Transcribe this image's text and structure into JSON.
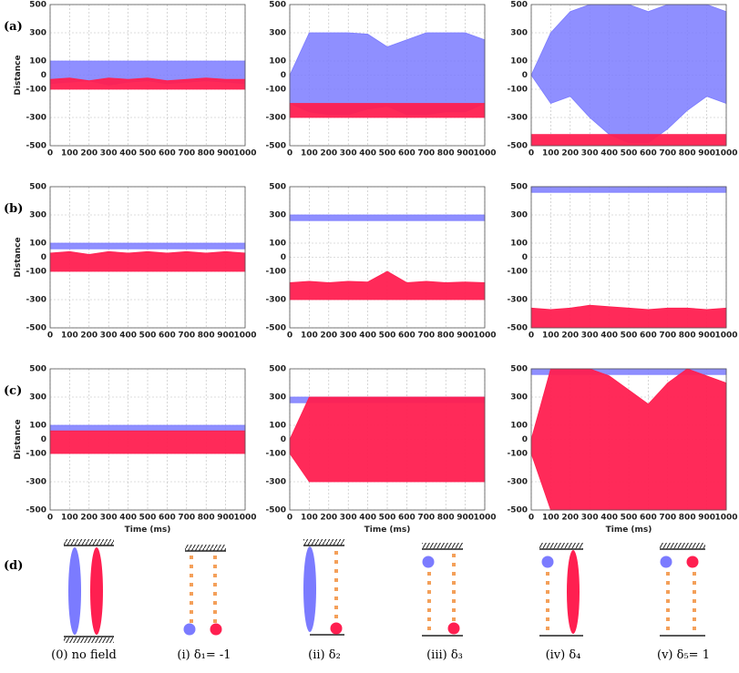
{
  "row_labels": [
    "(a)",
    "(b)",
    "(c)"
  ],
  "chart_data": [
    {
      "type": "band",
      "ylabel": "Distance",
      "x": [
        0,
        100,
        200,
        300,
        400,
        500,
        600,
        700,
        800,
        900,
        1000
      ],
      "xlim": [
        0,
        1000
      ],
      "xticks": [
        0,
        100,
        200,
        300,
        400,
        500,
        600,
        700,
        800,
        900,
        1000
      ],
      "ylim": [
        -500,
        500
      ],
      "yticks": [
        -500,
        -300,
        -100,
        0,
        100,
        300,
        500
      ],
      "grid": true,
      "series": [
        {
          "color": "#7b7bff",
          "low": [
            -60,
            -50,
            -40,
            -70,
            -50,
            -40,
            -60,
            -50,
            -40,
            -50,
            -60
          ],
          "high": [
            100,
            100,
            100,
            100,
            100,
            100,
            100,
            100,
            100,
            100,
            100
          ]
        },
        {
          "color": "#ff1f50",
          "low": [
            -100,
            -100,
            -100,
            -100,
            -100,
            -100,
            -100,
            -100,
            -100,
            -100,
            -100
          ],
          "high": [
            -30,
            -20,
            -40,
            -20,
            -30,
            -20,
            -40,
            -30,
            -20,
            -30,
            -30
          ]
        }
      ]
    },
    {
      "type": "band",
      "x": [
        0,
        100,
        200,
        300,
        400,
        500,
        600,
        700,
        800,
        900,
        1000
      ],
      "xlim": [
        0,
        1000
      ],
      "xticks": [
        0,
        100,
        200,
        300,
        400,
        500,
        600,
        700,
        800,
        900,
        1000
      ],
      "ylim": [
        -500,
        500
      ],
      "yticks": [
        -500,
        -300,
        -100,
        0,
        100,
        300,
        500
      ],
      "grid": true,
      "series": [
        {
          "color": "#7b7bff",
          "low": [
            -200,
            -260,
            -280,
            -280,
            -240,
            -220,
            -280,
            -280,
            -260,
            -260,
            -200
          ],
          "high": [
            0,
            300,
            300,
            300,
            290,
            200,
            250,
            300,
            300,
            300,
            250
          ]
        },
        {
          "color": "#ff1f50",
          "low": [
            -300,
            -300,
            -300,
            -300,
            -300,
            -300,
            -300,
            -300,
            -300,
            -300,
            -300
          ],
          "high": [
            -200,
            -200,
            -200,
            -200,
            -200,
            -200,
            -200,
            -200,
            -200,
            -200,
            -200
          ]
        }
      ]
    },
    {
      "type": "band",
      "x": [
        0,
        100,
        200,
        300,
        400,
        500,
        600,
        700,
        800,
        900,
        1000
      ],
      "xlim": [
        0,
        1000
      ],
      "xticks": [
        0,
        100,
        200,
        300,
        400,
        500,
        600,
        700,
        800,
        900,
        1000
      ],
      "ylim": [
        -500,
        500
      ],
      "yticks": [
        -500,
        -300,
        -100,
        0,
        100,
        300,
        500
      ],
      "grid": true,
      "series": [
        {
          "color": "#7b7bff",
          "low": [
            0,
            -200,
            -150,
            -300,
            -420,
            -480,
            -480,
            -380,
            -250,
            -150,
            -200
          ],
          "high": [
            0,
            300,
            450,
            500,
            500,
            500,
            450,
            500,
            500,
            500,
            450
          ]
        },
        {
          "color": "#ff1f50",
          "low": [
            -500,
            -500,
            -500,
            -500,
            -500,
            -500,
            -500,
            -500,
            -500,
            -500,
            -500
          ],
          "high": [
            -420,
            -420,
            -420,
            -420,
            -420,
            -420,
            -420,
            -420,
            -420,
            -420,
            -420
          ]
        }
      ]
    },
    {
      "type": "band",
      "ylabel": "Distance",
      "x": [
        0,
        100,
        200,
        300,
        400,
        500,
        600,
        700,
        800,
        900,
        1000
      ],
      "xlim": [
        0,
        1000
      ],
      "xticks": [
        0,
        100,
        200,
        300,
        400,
        500,
        600,
        700,
        800,
        900,
        1000
      ],
      "ylim": [
        -500,
        500
      ],
      "yticks": [
        -500,
        -300,
        -100,
        0,
        100,
        300,
        500
      ],
      "grid": true,
      "series": [
        {
          "color": "#7b7bff",
          "low": [
            60,
            60,
            60,
            60,
            60,
            60,
            60,
            60,
            60,
            60,
            60
          ],
          "high": [
            100,
            100,
            100,
            100,
            100,
            100,
            100,
            100,
            100,
            100,
            100
          ]
        },
        {
          "color": "#ff1f50",
          "low": [
            -100,
            -100,
            -100,
            -100,
            -100,
            -100,
            -100,
            -100,
            -100,
            -100,
            -100
          ],
          "high": [
            30,
            40,
            20,
            40,
            30,
            40,
            30,
            40,
            30,
            40,
            30
          ]
        }
      ]
    },
    {
      "type": "band",
      "x": [
        0,
        100,
        200,
        300,
        400,
        500,
        600,
        700,
        800,
        900,
        1000
      ],
      "xlim": [
        0,
        1000
      ],
      "xticks": [
        0,
        100,
        200,
        300,
        400,
        500,
        600,
        700,
        800,
        900,
        1000
      ],
      "ylim": [
        -500,
        500
      ],
      "yticks": [
        -500,
        -300,
        -100,
        0,
        100,
        300,
        500
      ],
      "grid": true,
      "series": [
        {
          "color": "#7b7bff",
          "low": [
            260,
            260,
            260,
            260,
            260,
            260,
            260,
            260,
            260,
            260,
            260
          ],
          "high": [
            300,
            300,
            300,
            300,
            300,
            300,
            300,
            300,
            300,
            300,
            300
          ]
        },
        {
          "color": "#ff1f50",
          "low": [
            -300,
            -300,
            -300,
            -300,
            -300,
            -300,
            -300,
            -300,
            -300,
            -300,
            -300
          ],
          "high": [
            -180,
            -170,
            -180,
            -170,
            -175,
            -100,
            -180,
            -170,
            -180,
            -175,
            -180
          ]
        }
      ]
    },
    {
      "type": "band",
      "x": [
        0,
        100,
        200,
        300,
        400,
        500,
        600,
        700,
        800,
        900,
        1000
      ],
      "xlim": [
        0,
        1000
      ],
      "xticks": [
        0,
        100,
        200,
        300,
        400,
        500,
        600,
        700,
        800,
        900,
        1000
      ],
      "ylim": [
        -500,
        500
      ],
      "yticks": [
        -500,
        -300,
        -100,
        0,
        100,
        300,
        500
      ],
      "grid": true,
      "series": [
        {
          "color": "#7b7bff",
          "low": [
            460,
            460,
            460,
            460,
            460,
            460,
            460,
            460,
            460,
            460,
            460
          ],
          "high": [
            500,
            500,
            500,
            500,
            500,
            500,
            500,
            500,
            500,
            500,
            500
          ]
        },
        {
          "color": "#ff1f50",
          "low": [
            -500,
            -500,
            -500,
            -500,
            -500,
            -500,
            -500,
            -500,
            -500,
            -500,
            -500
          ],
          "high": [
            -360,
            -370,
            -360,
            -340,
            -350,
            -360,
            -370,
            -360,
            -360,
            -370,
            -360
          ]
        }
      ]
    },
    {
      "type": "band",
      "ylabel": "Distance",
      "xlabel": "Time (ms)",
      "x": [
        0,
        100,
        200,
        300,
        400,
        500,
        600,
        700,
        800,
        900,
        1000
      ],
      "xlim": [
        0,
        1000
      ],
      "xticks": [
        0,
        100,
        200,
        300,
        400,
        500,
        600,
        700,
        800,
        900,
        1000
      ],
      "ylim": [
        -500,
        500
      ],
      "yticks": [
        -500,
        -300,
        -100,
        0,
        100,
        300,
        500
      ],
      "grid": true,
      "series": [
        {
          "color": "#7b7bff",
          "low": [
            60,
            60,
            60,
            60,
            60,
            60,
            60,
            60,
            60,
            60,
            60
          ],
          "high": [
            100,
            100,
            100,
            100,
            100,
            100,
            100,
            100,
            100,
            100,
            100
          ]
        },
        {
          "color": "#ff1f50",
          "low": [
            -100,
            -100,
            -100,
            -100,
            -100,
            -100,
            -100,
            -100,
            -100,
            -100,
            -100
          ],
          "high": [
            60,
            60,
            60,
            60,
            60,
            60,
            60,
            60,
            60,
            60,
            60
          ]
        }
      ]
    },
    {
      "type": "band",
      "xlabel": "Time (ms)",
      "x": [
        0,
        100,
        200,
        300,
        400,
        500,
        600,
        700,
        800,
        900,
        1000
      ],
      "xlim": [
        0,
        1000
      ],
      "xticks": [
        0,
        100,
        200,
        300,
        400,
        500,
        600,
        700,
        800,
        900,
        1000
      ],
      "ylim": [
        -500,
        500
      ],
      "yticks": [
        -500,
        -300,
        -100,
        0,
        100,
        300,
        500
      ],
      "grid": true,
      "series": [
        {
          "color": "#7b7bff",
          "low": [
            260,
            260,
            260,
            260,
            260,
            260,
            260,
            260,
            260,
            260,
            260
          ],
          "high": [
            300,
            300,
            300,
            300,
            300,
            300,
            300,
            300,
            300,
            300,
            300
          ]
        },
        {
          "color": "#ff1f50",
          "low": [
            -100,
            -300,
            -300,
            -300,
            -300,
            -300,
            -300,
            -300,
            -300,
            -300,
            -300
          ],
          "high": [
            0,
            300,
            300,
            300,
            300,
            300,
            300,
            300,
            300,
            300,
            300
          ]
        }
      ]
    },
    {
      "type": "band",
      "xlabel": "Time (ms)",
      "x": [
        0,
        100,
        200,
        300,
        400,
        500,
        600,
        700,
        800,
        900,
        1000
      ],
      "xlim": [
        0,
        1000
      ],
      "xticks": [
        0,
        100,
        200,
        300,
        400,
        500,
        600,
        700,
        800,
        900,
        1000
      ],
      "ylim": [
        -500,
        500
      ],
      "yticks": [
        -500,
        -300,
        -100,
        0,
        100,
        300,
        500
      ],
      "grid": true,
      "series": [
        {
          "color": "#7b7bff",
          "low": [
            460,
            460,
            460,
            460,
            460,
            460,
            460,
            460,
            460,
            460,
            460
          ],
          "high": [
            500,
            500,
            500,
            500,
            500,
            500,
            500,
            500,
            500,
            500,
            500
          ]
        },
        {
          "color": "#ff1f50",
          "low": [
            -100,
            -500,
            -500,
            -500,
            -500,
            -500,
            -500,
            -500,
            -500,
            -500,
            -500
          ],
          "high": [
            0,
            500,
            500,
            500,
            450,
            350,
            250,
            400,
            500,
            450,
            400
          ]
        }
      ]
    }
  ],
  "diagram": {
    "label": "(d)",
    "captions": [
      "(0) no field",
      "(i) δ₁= -1",
      "(ii) δ₂",
      "(iii) δ₃",
      "(iv) δ₄",
      "(v) δ₅= 1"
    ]
  }
}
